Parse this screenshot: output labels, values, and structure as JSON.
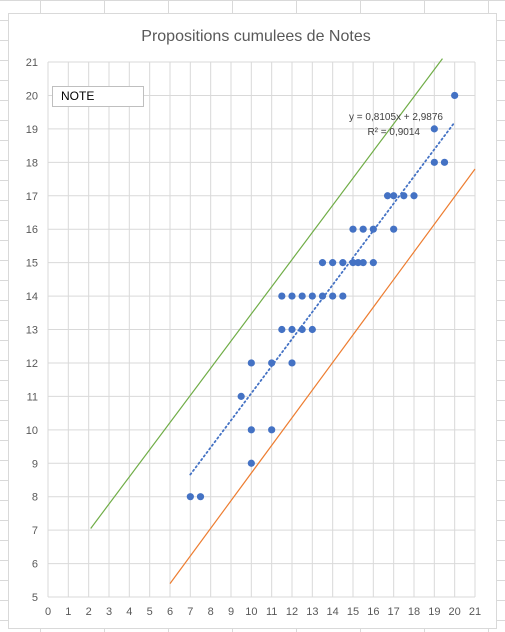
{
  "chart_data": {
    "type": "scatter",
    "title": "Propositions cumulees de Notes",
    "legend": {
      "label": "NOTE",
      "placement": "top-left"
    },
    "xlim": [
      0,
      21
    ],
    "ylim": [
      5,
      21
    ],
    "x_ticks": [
      0,
      1,
      2,
      3,
      4,
      5,
      6,
      7,
      8,
      9,
      10,
      11,
      12,
      13,
      14,
      15,
      16,
      17,
      18,
      19,
      20,
      21
    ],
    "y_ticks": [
      5,
      6,
      7,
      8,
      9,
      10,
      11,
      12,
      13,
      14,
      15,
      16,
      17,
      18,
      19,
      20,
      21
    ],
    "grid": true,
    "series": [
      {
        "color": "#4472c4",
        "points": [
          [
            7,
            8
          ],
          [
            7.5,
            8
          ],
          [
            10,
            9
          ],
          [
            10,
            10
          ],
          [
            11,
            10
          ],
          [
            9.5,
            11
          ],
          [
            10,
            12
          ],
          [
            11,
            12
          ],
          [
            12,
            12
          ],
          [
            11.5,
            13
          ],
          [
            12,
            13
          ],
          [
            12.5,
            13
          ],
          [
            13,
            13
          ],
          [
            11.5,
            14
          ],
          [
            12,
            14
          ],
          [
            12.5,
            14
          ],
          [
            13,
            14
          ],
          [
            13.5,
            14
          ],
          [
            14,
            14
          ],
          [
            14.5,
            14
          ],
          [
            13.5,
            15
          ],
          [
            14,
            15
          ],
          [
            14.5,
            15
          ],
          [
            15,
            15
          ],
          [
            15.25,
            15
          ],
          [
            15.5,
            15
          ],
          [
            16,
            15
          ],
          [
            15,
            16
          ],
          [
            15.5,
            16
          ],
          [
            16,
            16
          ],
          [
            17,
            16
          ],
          [
            16.7,
            17
          ],
          [
            17,
            17
          ],
          [
            17.5,
            17
          ],
          [
            18,
            17
          ],
          [
            19,
            18
          ],
          [
            19.5,
            18
          ],
          [
            19,
            19
          ],
          [
            20,
            20
          ]
        ]
      }
    ],
    "trendline": {
      "type": "linear",
      "style": "dotted",
      "color": "#4472c4",
      "x_range": [
        7,
        20
      ],
      "slope": 0.8105,
      "intercept": 2.9876,
      "equation": "y = 0,8105x + 2,9876",
      "r2": "R² = 0,9014"
    },
    "lines": [
      {
        "color": "#70ad47",
        "from": [
          2.1,
          7.05
        ],
        "to": [
          19.4,
          21.1
        ]
      },
      {
        "color": "#ed7d31",
        "from": [
          6,
          5.4
        ],
        "to": [
          21,
          17.8
        ]
      }
    ]
  }
}
